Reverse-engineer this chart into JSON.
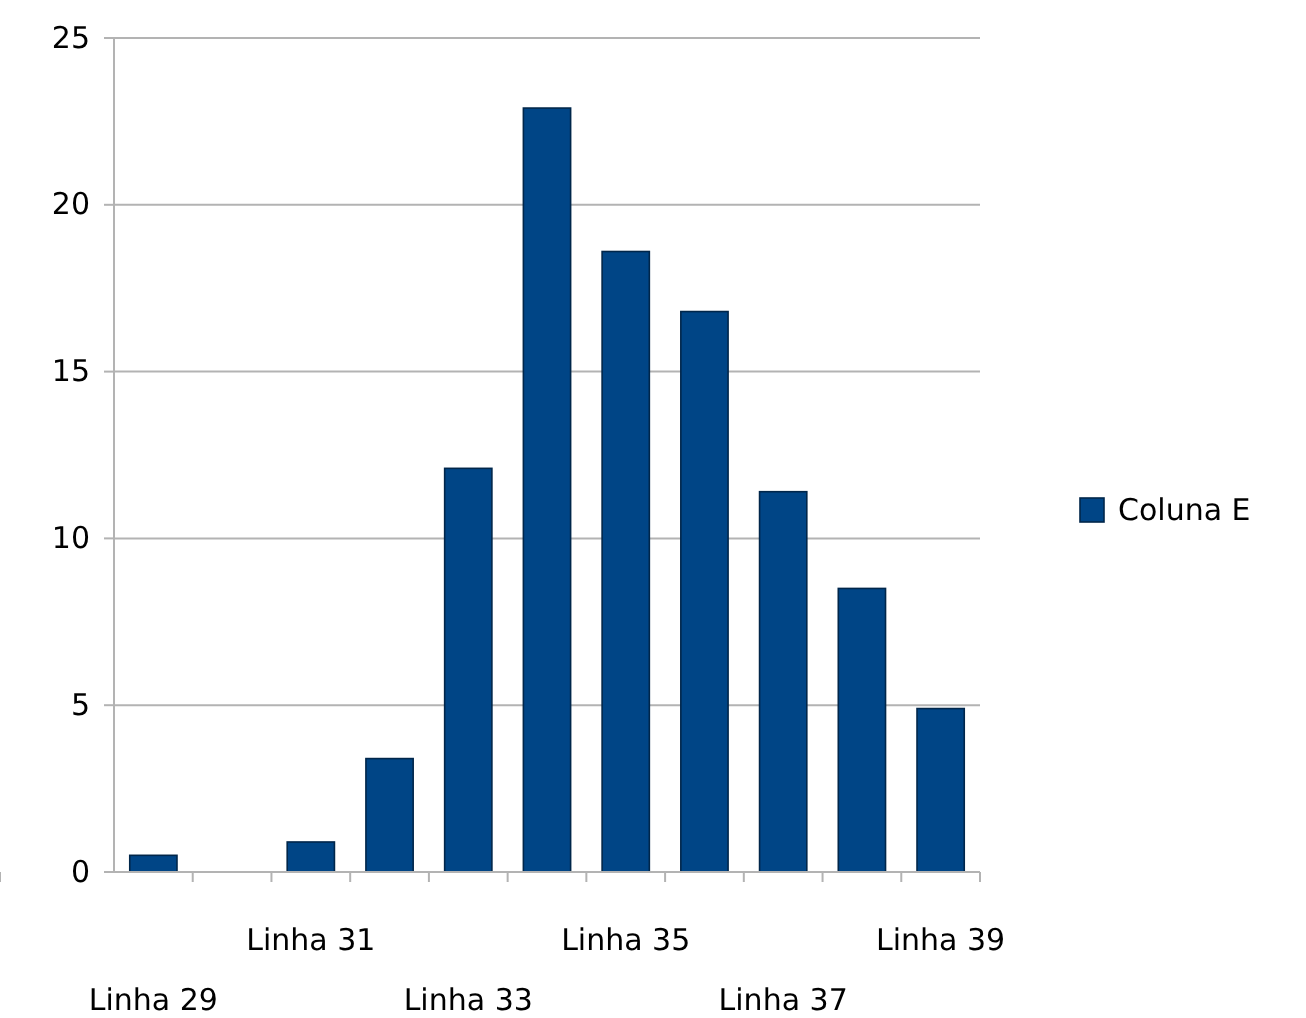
{
  "chart_data": {
    "type": "bar",
    "categories": [
      "Linha 29",
      null,
      "Linha 31",
      null,
      "Linha 33",
      null,
      "Linha 35",
      null,
      "Linha 37",
      null,
      "Linha 39"
    ],
    "series": [
      {
        "name": "Coluna E",
        "color": "#004586",
        "values": [
          0.5,
          0,
          0.9,
          3.4,
          12.1,
          22.9,
          18.6,
          16.8,
          11.4,
          8.5,
          4.9
        ]
      }
    ],
    "ylim": [
      0,
      25
    ],
    "yticks": [
      0,
      5,
      10,
      15,
      20,
      25
    ],
    "grid": "y",
    "legend": "right"
  }
}
